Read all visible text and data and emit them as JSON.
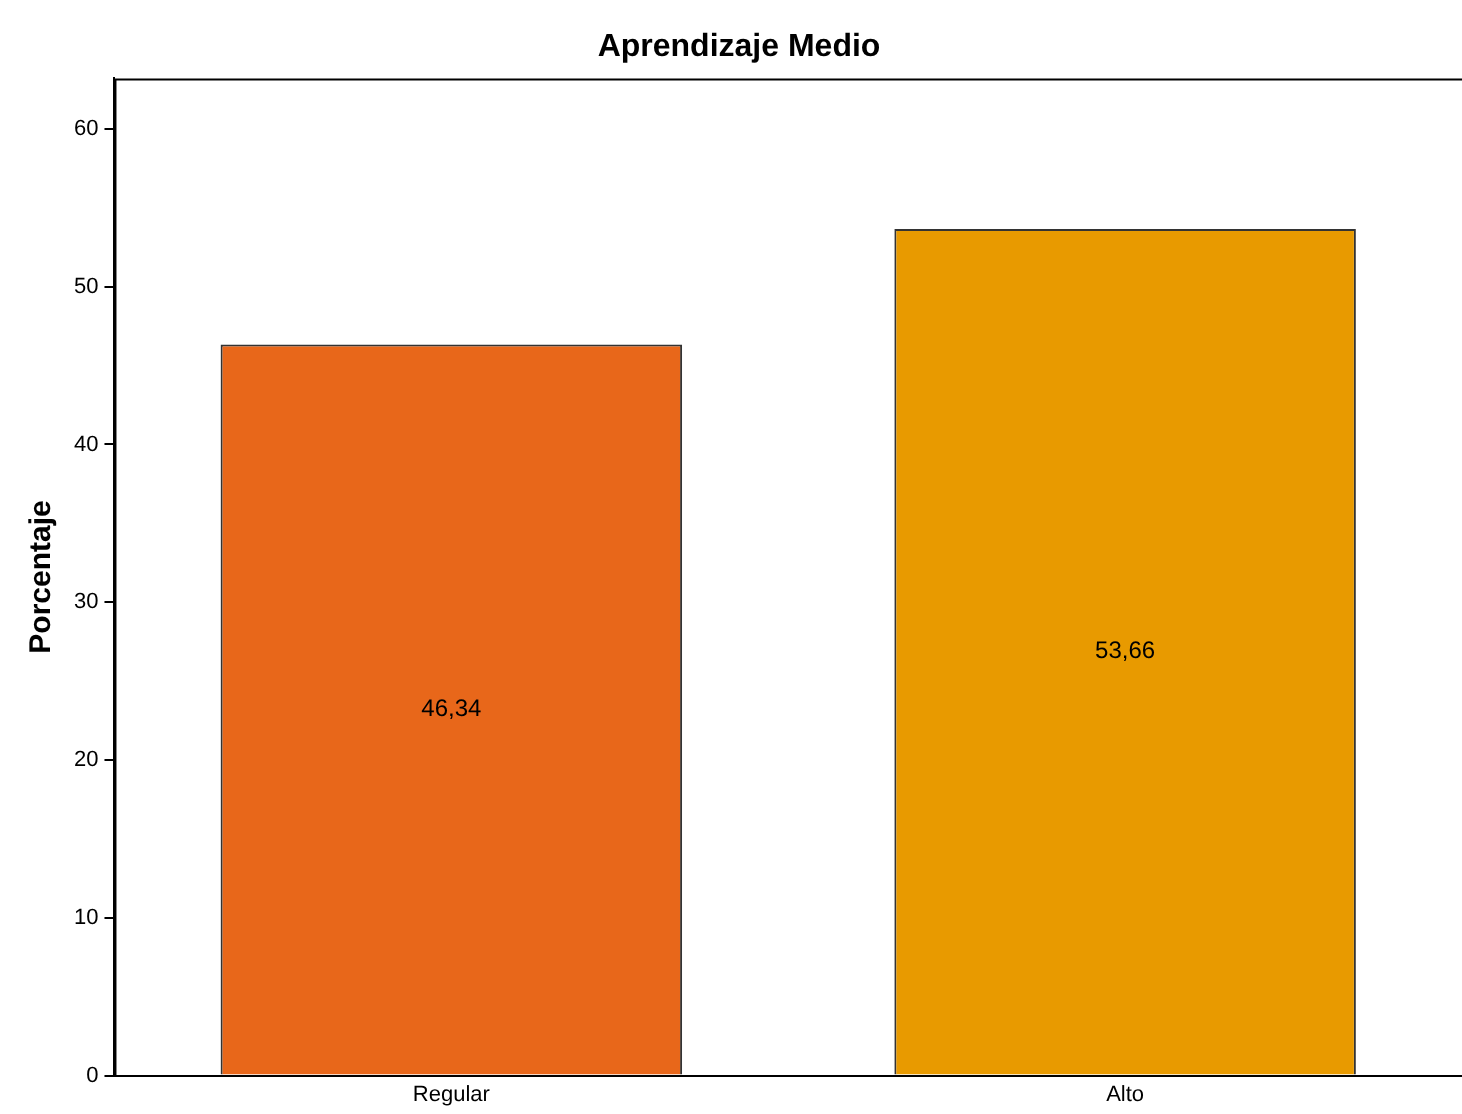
{
  "chart_data": {
    "type": "bar",
    "title": "Aprendizaje Medio",
    "ylabel": "Porcentaje",
    "categories": [
      "Regular",
      "Alto"
    ],
    "values": [
      46.34,
      53.66
    ],
    "colors": [
      "#e8671a",
      "#e89a00"
    ],
    "value_labels": [
      "46,34",
      "53,66"
    ],
    "ylim": [
      0,
      63.2
    ],
    "yticks": [
      0,
      10,
      20,
      30,
      40,
      50,
      60
    ],
    "grid": false
  }
}
